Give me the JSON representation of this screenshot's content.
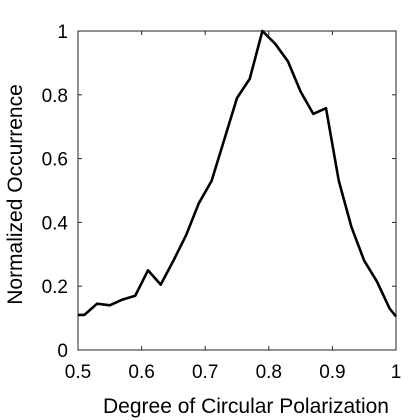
{
  "chart_data": {
    "type": "line",
    "title": "",
    "xlabel": "Degree of Circular Polarization",
    "ylabel": "Normalized Occurrence",
    "xlim": [
      0.5,
      1
    ],
    "ylim": [
      0,
      1
    ],
    "xticks": [
      "0.5",
      "0.6",
      "0.7",
      "0.8",
      "0.9",
      "1"
    ],
    "yticks": [
      "0",
      "0.2",
      "0.4",
      "0.6",
      "0.8",
      "1"
    ],
    "grid": false,
    "legend": "none",
    "line_color": "#000000",
    "series": [
      {
        "x": [
          0.5,
          0.51,
          0.53,
          0.55,
          0.57,
          0.59,
          0.61,
          0.63,
          0.65,
          0.67,
          0.69,
          0.71,
          0.73,
          0.75,
          0.77,
          0.79,
          0.81,
          0.83,
          0.85,
          0.87,
          0.89,
          0.91,
          0.93,
          0.95,
          0.97,
          0.99,
          1.0
        ],
        "y": [
          0.11,
          0.11,
          0.145,
          0.14,
          0.158,
          0.17,
          0.25,
          0.205,
          0.28,
          0.36,
          0.46,
          0.53,
          0.66,
          0.79,
          0.85,
          1.0,
          0.96,
          0.905,
          0.81,
          0.74,
          0.758,
          0.53,
          0.385,
          0.28,
          0.215,
          0.13,
          0.105
        ]
      }
    ]
  }
}
